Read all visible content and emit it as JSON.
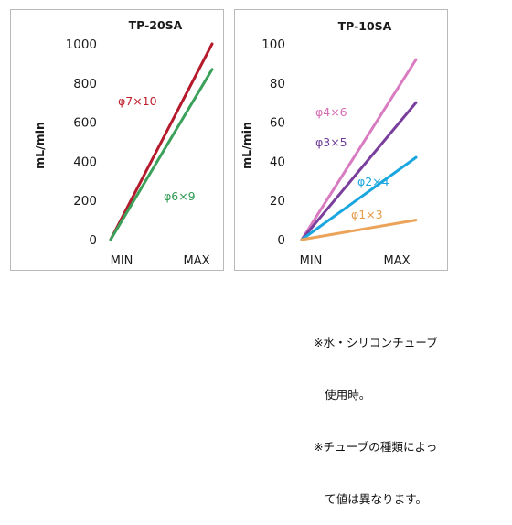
{
  "chart_data": [
    {
      "type": "line",
      "title": "TP-20SA",
      "ylabel": "mL/min",
      "xlabel": "",
      "x": [
        "MIN",
        "MAX"
      ],
      "ylim": [
        0,
        1000
      ],
      "yticks": [
        0,
        200,
        400,
        600,
        800,
        1000
      ],
      "grid": false,
      "legend": "none",
      "series": [
        {
          "name": "φ7×10",
          "values": [
            0,
            1000
          ],
          "color": "#b51a2c"
        },
        {
          "name": "φ6×9",
          "values": [
            0,
            870
          ],
          "color": "#3aa05a"
        }
      ],
      "label_colors": {
        "φ7×10": "#c0202e",
        "φ6×9": "#2f9a52"
      }
    },
    {
      "type": "line",
      "title": "TP-10SA",
      "ylabel": "mL/min",
      "xlabel": "",
      "x": [
        "MIN",
        "MAX"
      ],
      "ylim": [
        0,
        100
      ],
      "yticks": [
        0,
        20,
        40,
        60,
        80,
        100
      ],
      "grid": false,
      "legend": "none",
      "series": [
        {
          "name": "φ4×6",
          "values": [
            0,
            92
          ],
          "color": "#d97bc0"
        },
        {
          "name": "φ3×5",
          "values": [
            0,
            70
          ],
          "color": "#7a3f9c"
        },
        {
          "name": "φ2×4",
          "values": [
            0,
            42
          ],
          "color": "#1aa6de"
        },
        {
          "name": "φ1×3",
          "values": [
            0,
            10
          ],
          "color": "#eba35a"
        }
      ],
      "label_colors": {
        "φ4×6": "#d86cb6",
        "φ3×5": "#6e3b97",
        "φ2×4": "#1aa6de",
        "φ1×3": "#e79a47"
      }
    }
  ],
  "note": {
    "line1": "※水・シリコンチューブ",
    "line2": "使用時。",
    "line3": "※チューブの種類によっ",
    "line4": "て値は異なります。"
  }
}
